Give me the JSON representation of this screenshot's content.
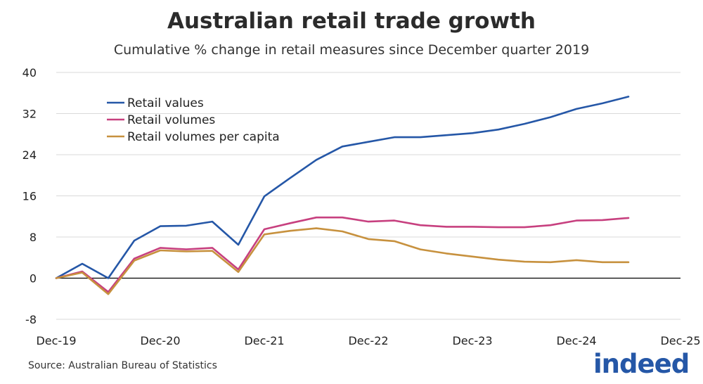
{
  "chart_data": {
    "type": "line",
    "title": "Australian retail trade growth",
    "subtitle": "Cumulative % change in retail measures since December quarter 2019",
    "xlabel": "",
    "ylabel": "",
    "ylim": [
      -8,
      40
    ],
    "yticks": [
      "40",
      "32",
      "24",
      "16",
      "8",
      "0",
      "-8"
    ],
    "ytick_values": [
      40,
      32,
      24,
      16,
      8,
      0,
      -8
    ],
    "xlim": [
      0,
      24
    ],
    "xticks": [
      "Dec-19",
      "Dec-20",
      "Dec-21",
      "Dec-22",
      "Dec-23",
      "Dec-24",
      "Dec-25"
    ],
    "xtick_values": [
      0,
      4,
      8,
      12,
      16,
      20,
      24
    ],
    "grid": true,
    "legend_position": "top-left",
    "x": [
      0,
      1,
      2,
      3,
      4,
      5,
      6,
      7,
      8,
      9,
      10,
      11,
      12,
      13,
      14,
      15,
      16,
      17,
      18,
      19,
      20,
      21,
      22
    ],
    "series": [
      {
        "name": "Retail values",
        "color": "#2557a7",
        "values": [
          0,
          2.8,
          0,
          7.3,
          10.1,
          10.2,
          11.0,
          6.5,
          15.9,
          19.5,
          23.0,
          25.6,
          26.5,
          27.4,
          27.4,
          27.8,
          28.2,
          28.9,
          30.0,
          31.3,
          32.9,
          34.0,
          35.3
        ]
      },
      {
        "name": "Retail volumes",
        "color": "#c7407f",
        "values": [
          0,
          1.3,
          -2.7,
          3.8,
          5.9,
          5.6,
          5.9,
          1.7,
          9.5,
          10.7,
          11.8,
          11.8,
          11.0,
          11.2,
          10.3,
          10.0,
          10.0,
          9.9,
          9.9,
          10.3,
          11.2,
          11.3,
          11.7
        ]
      },
      {
        "name": "Retail volumes per capita",
        "color": "#c7913e",
        "values": [
          0,
          1.1,
          -3.1,
          3.4,
          5.4,
          5.2,
          5.3,
          1.2,
          8.5,
          9.2,
          9.7,
          9.1,
          7.6,
          7.2,
          5.6,
          4.8,
          4.2,
          3.6,
          3.2,
          3.1,
          3.5,
          3.1,
          3.1
        ]
      }
    ]
  },
  "footer": {
    "source": "Source: Australian Bureau of Statistics",
    "logo_text": "indeed"
  }
}
